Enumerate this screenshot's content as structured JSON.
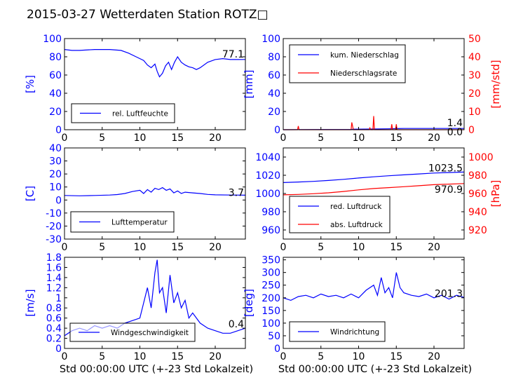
{
  "figure": {
    "title": "2015-03-27 Wetterdaten Station ROTZ□"
  },
  "chart_data": [
    {
      "type": "line",
      "ylabel": "[%]",
      "xlim": [
        0,
        24
      ],
      "ylim": [
        0,
        100
      ],
      "xticks": [
        0,
        5,
        10,
        15,
        20
      ],
      "yticks": [
        0,
        20,
        40,
        60,
        80,
        100
      ],
      "legend": "lower-left",
      "last_value_label": "77.1",
      "series": [
        {
          "name": "rel. Luftfeuchte",
          "color": "#0000ff",
          "x": [
            0,
            1,
            2,
            4,
            6,
            7.5,
            8.5,
            9.5,
            10.5,
            11,
            11.5,
            12,
            12.3,
            12.6,
            13,
            13.4,
            13.8,
            14.2,
            14.6,
            15,
            15.5,
            16,
            16.5,
            17,
            17.5,
            18,
            19,
            20,
            21,
            22,
            23,
            24
          ],
          "values": [
            88,
            87,
            87,
            88,
            88,
            87,
            84,
            80,
            76,
            71,
            68,
            72,
            64,
            58,
            62,
            70,
            74,
            66,
            74,
            80,
            74,
            71,
            69,
            68,
            66,
            68,
            74,
            77,
            78,
            77,
            77,
            77.1
          ]
        }
      ]
    },
    {
      "type": "line",
      "ylabel": "[mm]",
      "ylabel_right": "[mm/std]",
      "xlim": [
        0,
        24
      ],
      "ylim": [
        0,
        100
      ],
      "ylim_right": [
        0,
        50
      ],
      "xticks": [
        0,
        5,
        10,
        15,
        20
      ],
      "yticks": [
        0,
        20,
        40,
        60,
        80,
        100
      ],
      "yticks_right": [
        0,
        10,
        20,
        30,
        40,
        50
      ],
      "legend": "top-left",
      "last_value_labels": [
        "1.4",
        "0.0"
      ],
      "series": [
        {
          "name": "kum. Niederschlag",
          "color": "#0000ff",
          "axis": "left",
          "x": [
            0,
            2,
            9,
            9.3,
            12,
            14,
            15,
            16,
            24
          ],
          "values": [
            0,
            0.1,
            0.3,
            0.6,
            0.8,
            1.0,
            1.2,
            1.4,
            1.4
          ]
        },
        {
          "name": "Niederschlagsrate",
          "color": "#ff0000",
          "axis": "right",
          "x": [
            0,
            1.9,
            2.0,
            2.1,
            9.0,
            9.1,
            9.2,
            9.3,
            11.4,
            11.5,
            11.6,
            11.9,
            12.0,
            12.1,
            14.3,
            14.4,
            14.5,
            14.9,
            15.0,
            15.1,
            24
          ],
          "values": [
            0,
            0,
            2,
            0,
            0,
            4,
            2,
            0,
            0,
            1,
            0,
            0,
            7.5,
            0,
            0,
            3,
            0,
            0,
            3,
            0,
            0
          ]
        }
      ]
    },
    {
      "type": "line",
      "ylabel": "[C]",
      "xlim": [
        0,
        24
      ],
      "ylim": [
        -30,
        40
      ],
      "xticks": [
        0,
        5,
        10,
        15,
        20
      ],
      "yticks": [
        -30,
        -20,
        -10,
        0,
        10,
        20,
        30,
        40
      ],
      "legend": "lower-left",
      "last_value_label": "3.7",
      "series": [
        {
          "name": "Lufttemperatur",
          "color": "#0000ff",
          "x": [
            0,
            2,
            4,
            6,
            7,
            8,
            9,
            10,
            10.5,
            11,
            11.5,
            12,
            12.5,
            13,
            13.5,
            14,
            14.5,
            15,
            15.5,
            16,
            17,
            18,
            19,
            20,
            22,
            24
          ],
          "values": [
            3.5,
            3.2,
            3.5,
            3.8,
            4.2,
            5,
            6.5,
            7.5,
            5,
            8,
            6,
            9,
            8,
            9.5,
            7.5,
            8.5,
            5.5,
            7,
            5,
            6,
            5.5,
            5,
            4.3,
            4,
            3.8,
            3.7
          ]
        }
      ]
    },
    {
      "type": "line",
      "ylabel": "",
      "ylabel_right": "[hPa]",
      "xlim": [
        0,
        24
      ],
      "ylim": [
        950,
        1050
      ],
      "ylim_right": [
        910,
        1010
      ],
      "xticks": [
        0,
        5,
        10,
        15,
        20
      ],
      "yticks": [
        960,
        980,
        1000,
        1020,
        1040
      ],
      "yticks_right": [
        920,
        940,
        960,
        980,
        1000
      ],
      "legend": "lower-left",
      "last_value_labels": [
        "1023.5",
        "970.9"
      ],
      "series": [
        {
          "name": "red. Luftdruck",
          "color": "#0000ff",
          "axis": "left",
          "x": [
            0,
            2,
            4,
            6,
            8,
            10,
            12,
            14,
            16,
            18,
            20,
            22,
            24
          ],
          "values": [
            1012,
            1012.6,
            1013.3,
            1014.3,
            1015.5,
            1017,
            1018.3,
            1019.5,
            1020.5,
            1021.5,
            1022.5,
            1023,
            1023.5
          ]
        },
        {
          "name": "abs. Luftdruck",
          "color": "#ff0000",
          "axis": "right",
          "x": [
            0,
            2,
            4,
            6,
            8,
            10,
            12,
            14,
            16,
            18,
            20,
            22,
            24
          ],
          "values": [
            958.5,
            959,
            959.8,
            960.8,
            962.2,
            964,
            965.5,
            966.5,
            967.5,
            968.5,
            969.7,
            970.3,
            970.9
          ]
        }
      ]
    },
    {
      "type": "line",
      "ylabel": "[m/s]",
      "xlim": [
        0,
        24
      ],
      "ylim": [
        0,
        1.8
      ],
      "xticks": [
        0,
        5,
        10,
        15,
        20
      ],
      "yticks": [
        0,
        0.2,
        0.4,
        0.6,
        0.8,
        1.0,
        1.2,
        1.4,
        1.6,
        1.8
      ],
      "legend": "lower-center",
      "last_value_label": "0.4",
      "series": [
        {
          "name": "Windgeschwindigkeit",
          "color": "#0000ff",
          "x": [
            0,
            1,
            2,
            3,
            4,
            5,
            6,
            7,
            8,
            9,
            10,
            10.5,
            11,
            11.5,
            12,
            12.3,
            12.6,
            13,
            13.5,
            14,
            14.5,
            15,
            15.5,
            16,
            16.5,
            17,
            18,
            19,
            20,
            21,
            22,
            23,
            24
          ],
          "values": [
            0.25,
            0.35,
            0.4,
            0.35,
            0.45,
            0.4,
            0.45,
            0.4,
            0.5,
            0.55,
            0.6,
            0.9,
            1.2,
            0.8,
            1.5,
            1.75,
            1.1,
            1.2,
            0.7,
            1.45,
            0.9,
            1.1,
            0.8,
            0.95,
            0.6,
            0.7,
            0.5,
            0.4,
            0.35,
            0.3,
            0.3,
            0.35,
            0.4
          ]
        }
      ]
    },
    {
      "type": "line",
      "ylabel": "[deg]",
      "xlim": [
        0,
        24
      ],
      "ylim": [
        0,
        360
      ],
      "xticks": [
        0,
        5,
        10,
        15,
        20
      ],
      "yticks": [
        0,
        50,
        100,
        150,
        200,
        250,
        300,
        350
      ],
      "legend": "lower-left",
      "last_value_label": "201.3",
      "series": [
        {
          "name": "Windrichtung",
          "color": "#0000ff",
          "x": [
            0,
            1,
            2,
            3,
            4,
            5,
            6,
            7,
            8,
            9,
            10,
            11,
            12,
            12.5,
            13,
            13.5,
            14,
            14.5,
            15,
            15.5,
            16,
            17,
            18,
            19,
            20,
            21,
            22,
            23,
            24
          ],
          "values": [
            200,
            190,
            205,
            210,
            200,
            215,
            205,
            210,
            200,
            215,
            200,
            230,
            250,
            210,
            280,
            220,
            240,
            200,
            300,
            240,
            220,
            210,
            205,
            215,
            200,
            210,
            195,
            210,
            201.3
          ]
        }
      ]
    }
  ],
  "xlabel": "Std 00:00:00 UTC (+-23 Std Lokalzeit)"
}
